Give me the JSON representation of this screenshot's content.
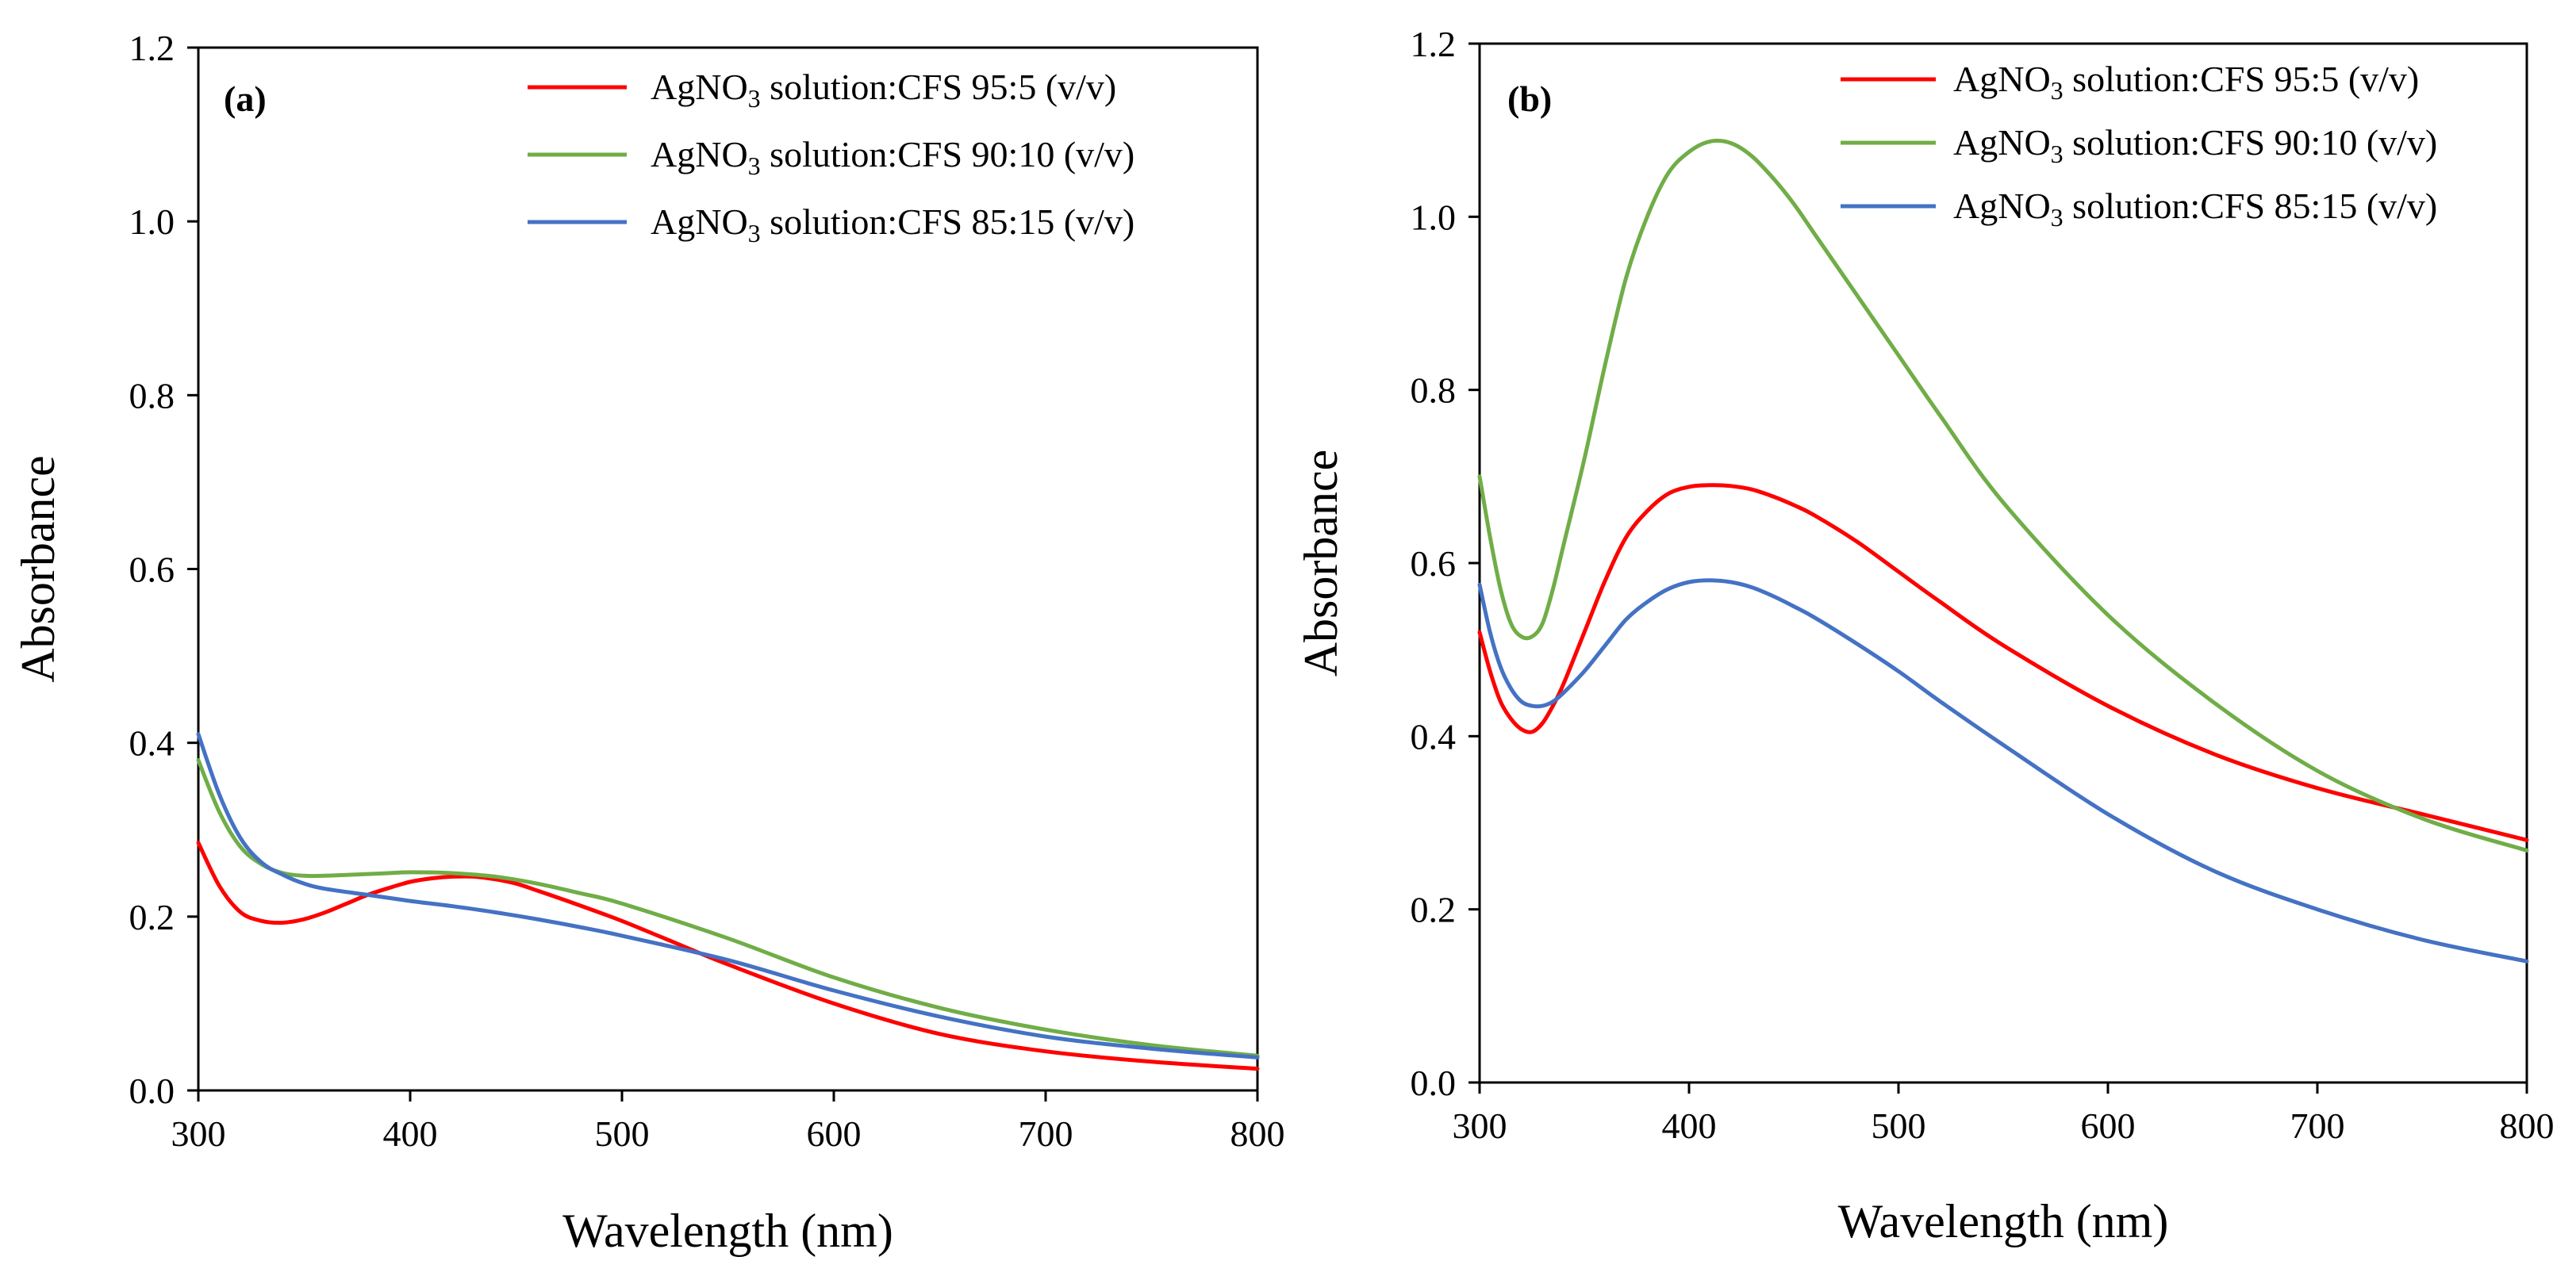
{
  "chart_data": [
    {
      "type": "line",
      "panel_label": "(a)",
      "xlabel": "Wavelength (nm)",
      "ylabel": "Absorbance",
      "xlim": [
        300,
        800
      ],
      "ylim": [
        0.0,
        1.2
      ],
      "xticks": [
        "300",
        "400",
        "500",
        "600",
        "700",
        "800"
      ],
      "yticks": [
        "0.0",
        "0.2",
        "0.4",
        "0.6",
        "0.8",
        "1.0",
        "1.2"
      ],
      "grid": false,
      "legend_position": "top-right",
      "series": [
        {
          "name": "AgNO₃ solution:CFS 95:5 (v/v)",
          "color": "#ff0000",
          "x": [
            300,
            310,
            320,
            330,
            340,
            350,
            360,
            370,
            380,
            390,
            400,
            410,
            420,
            430,
            440,
            450,
            460,
            480,
            500,
            520,
            550,
            600,
            650,
            700,
            750,
            800
          ],
          "y": [
            0.285,
            0.235,
            0.205,
            0.195,
            0.193,
            0.197,
            0.205,
            0.215,
            0.225,
            0.233,
            0.24,
            0.244,
            0.246,
            0.246,
            0.243,
            0.238,
            0.23,
            0.213,
            0.195,
            0.175,
            0.145,
            0.1,
            0.065,
            0.045,
            0.033,
            0.025
          ]
        },
        {
          "name": "AgNO₃ solution:CFS 90:10 (v/v)",
          "color": "#70ad47",
          "x": [
            300,
            310,
            320,
            330,
            340,
            350,
            360,
            370,
            380,
            390,
            400,
            420,
            440,
            460,
            480,
            500,
            550,
            600,
            650,
            700,
            750,
            800
          ],
          "y": [
            0.38,
            0.32,
            0.28,
            0.26,
            0.25,
            0.247,
            0.247,
            0.248,
            0.249,
            0.25,
            0.251,
            0.25,
            0.246,
            0.238,
            0.227,
            0.215,
            0.175,
            0.13,
            0.095,
            0.07,
            0.052,
            0.04
          ]
        },
        {
          "name": "AgNO₃ solution:CFS 85:15 (v/v)",
          "color": "#4472c4",
          "x": [
            300,
            310,
            320,
            330,
            340,
            350,
            360,
            380,
            400,
            420,
            440,
            460,
            480,
            500,
            550,
            600,
            650,
            700,
            750,
            800
          ],
          "y": [
            0.41,
            0.34,
            0.29,
            0.262,
            0.248,
            0.238,
            0.232,
            0.225,
            0.218,
            0.212,
            0.205,
            0.197,
            0.188,
            0.178,
            0.15,
            0.115,
            0.085,
            0.062,
            0.048,
            0.038
          ]
        }
      ],
      "legend_labels": [
        {
          "main": "AgNO",
          "sub": "3",
          "rest": " solution:CFS 95:5 (v/v)"
        },
        {
          "main": "AgNO",
          "sub": "3",
          "rest": " solution:CFS 90:10 (v/v)"
        },
        {
          "main": "AgNO",
          "sub": "3",
          "rest": " solution:CFS 85:15 (v/v)"
        }
      ]
    },
    {
      "type": "line",
      "panel_label": "(b)",
      "xlabel": "Wavelength (nm)",
      "ylabel": "Absorbance",
      "xlim": [
        300,
        800
      ],
      "ylim": [
        0.0,
        1.2
      ],
      "xticks": [
        "300",
        "400",
        "500",
        "600",
        "700",
        "800"
      ],
      "yticks": [
        "0.0",
        "0.2",
        "0.4",
        "0.6",
        "0.8",
        "1.0",
        "1.2"
      ],
      "grid": false,
      "legend_position": "top-right",
      "series": [
        {
          "name": "AgNO₃ solution:CFS 95:5 (v/v)",
          "color": "#ff0000",
          "x": [
            300,
            305,
            310,
            315,
            320,
            325,
            330,
            335,
            340,
            350,
            360,
            370,
            380,
            390,
            400,
            410,
            420,
            430,
            440,
            450,
            460,
            480,
            500,
            520,
            550,
            600,
            650,
            700,
            750,
            800
          ],
          "y": [
            0.52,
            0.475,
            0.44,
            0.42,
            0.408,
            0.405,
            0.415,
            0.435,
            0.46,
            0.52,
            0.58,
            0.63,
            0.66,
            0.68,
            0.688,
            0.69,
            0.689,
            0.685,
            0.677,
            0.667,
            0.655,
            0.625,
            0.59,
            0.555,
            0.505,
            0.435,
            0.38,
            0.34,
            0.31,
            0.28
          ]
        },
        {
          "name": "AgNO₃ solution:CFS 90:10 (v/v)",
          "color": "#70ad47",
          "x": [
            300,
            305,
            310,
            315,
            320,
            325,
            330,
            335,
            340,
            350,
            360,
            370,
            380,
            390,
            400,
            410,
            420,
            430,
            440,
            450,
            460,
            480,
            500,
            520,
            550,
            600,
            650,
            700,
            750,
            800
          ],
          "y": [
            0.7,
            0.63,
            0.57,
            0.53,
            0.515,
            0.515,
            0.53,
            0.57,
            0.62,
            0.72,
            0.83,
            0.93,
            1.0,
            1.05,
            1.075,
            1.087,
            1.085,
            1.07,
            1.045,
            1.015,
            0.98,
            0.91,
            0.84,
            0.77,
            0.67,
            0.54,
            0.44,
            0.36,
            0.305,
            0.268
          ]
        },
        {
          "name": "AgNO₃ solution:CFS 85:15 (v/v)",
          "color": "#4472c4",
          "x": [
            300,
            305,
            310,
            315,
            320,
            325,
            330,
            335,
            340,
            350,
            360,
            370,
            380,
            390,
            400,
            410,
            420,
            430,
            440,
            450,
            460,
            480,
            500,
            520,
            550,
            600,
            650,
            700,
            750,
            800
          ],
          "y": [
            0.575,
            0.52,
            0.48,
            0.455,
            0.44,
            0.435,
            0.435,
            0.44,
            0.45,
            0.475,
            0.505,
            0.535,
            0.555,
            0.57,
            0.578,
            0.58,
            0.578,
            0.572,
            0.562,
            0.55,
            0.537,
            0.507,
            0.475,
            0.44,
            0.39,
            0.31,
            0.245,
            0.2,
            0.165,
            0.14
          ]
        }
      ],
      "legend_labels": [
        {
          "main": "AgNO",
          "sub": "3",
          "rest": " solution:CFS 95:5 (v/v)"
        },
        {
          "main": "AgNO",
          "sub": "3",
          "rest": " solution:CFS 90:10 (v/v)"
        },
        {
          "main": "AgNO",
          "sub": "3",
          "rest": " solution:CFS 85:15 (v/v)"
        }
      ]
    }
  ]
}
